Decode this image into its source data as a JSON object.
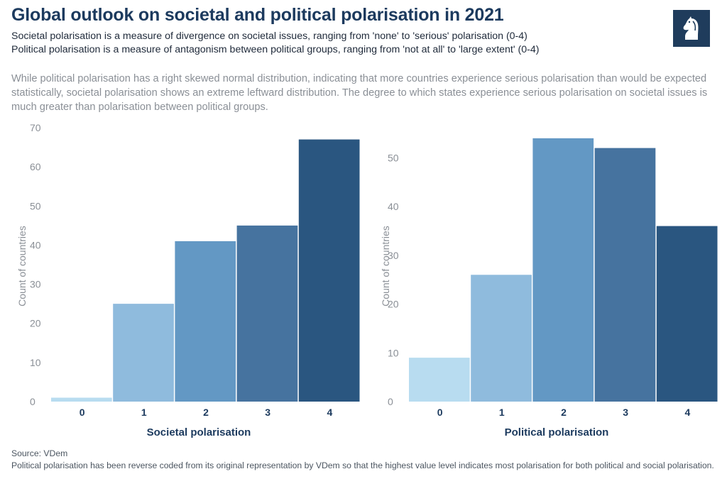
{
  "header": {
    "title": "Global outlook on societal and political polarisation in 2021",
    "subtitle_1": "Societal polarisation is a measure of divergence on societal issues, ranging from 'none' to 'serious' polarisation (0-4)",
    "subtitle_2": "Political polarisation is a measure of antagonism between political groups, ranging from 'not at all' to 'large extent' (0-4)",
    "description": "While political polarisation has a right skewed normal distribution, indicating that more countries experience serious polarisation than would be expected statistically, societal polarisation shows an extreme leftward distribution. The degree to which states experience serious polarisation on societal issues is much greater than polarisation between political groups."
  },
  "logo": {
    "icon": "horse-chess-knight-logo-icon",
    "background": "#1f3c5c"
  },
  "colors": {
    "bars": [
      "#b8dcf0",
      "#8fbbdd",
      "#6398c4",
      "#46739f",
      "#2a5680"
    ],
    "axis_text": "#8a8f96",
    "xlabel_text": "#1c3a5e"
  },
  "chart_data": [
    {
      "type": "bar",
      "categories": [
        "0",
        "1",
        "2",
        "3",
        "4"
      ],
      "values": [
        1,
        25,
        41,
        45,
        67
      ],
      "title": "",
      "xlabel": "Societal polarisation",
      "ylabel": "Count of countries",
      "ylim": [
        0,
        70
      ],
      "yticks": [
        0,
        10,
        20,
        30,
        40,
        50,
        60,
        70
      ],
      "grid": false
    },
    {
      "type": "bar",
      "categories": [
        "0",
        "1",
        "2",
        "3",
        "4"
      ],
      "values": [
        9,
        26,
        54,
        52,
        36
      ],
      "title": "",
      "xlabel": "Political polarisation",
      "ylabel": "Count of countries",
      "ylim": [
        0,
        55
      ],
      "yticks": [
        0,
        10,
        20,
        30,
        40,
        50
      ],
      "grid": false
    }
  ],
  "footer": {
    "source": "Source: VDem",
    "note": "Political polarisation has been reverse coded from its original representation by VDem so that the highest value level indicates most polarisation for both political and social polarisation."
  }
}
